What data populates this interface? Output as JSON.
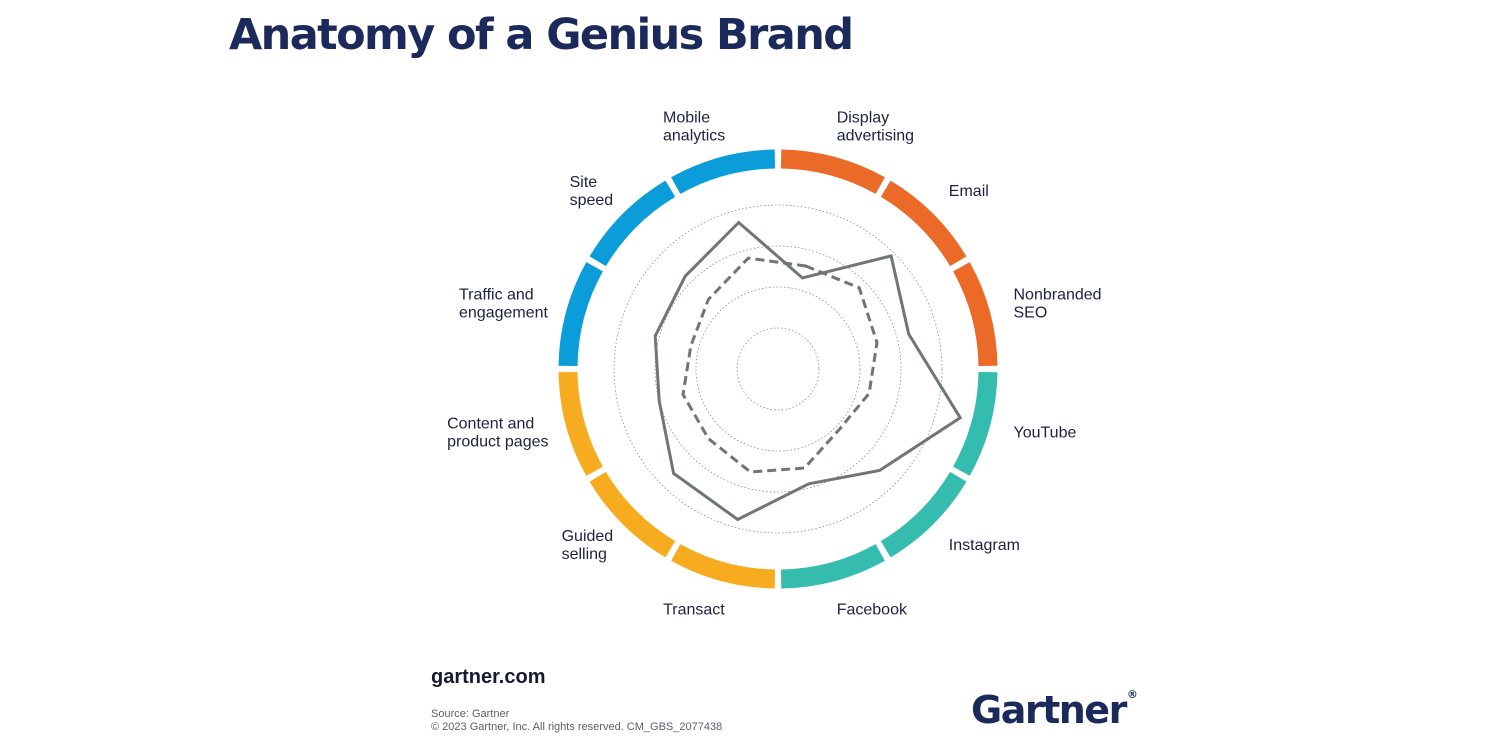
{
  "page": {
    "title": "Anatomy of a Genius Brand",
    "website": "gartner.com",
    "source_line": "Source: Gartner",
    "copyright_line": "© 2023 Gartner, Inc. All rights reserved. CM_GBS_2077438",
    "logo_text": "Gartner",
    "logo_mark": "®"
  },
  "chart_data": {
    "type": "radar",
    "categories": [
      "Display advertising",
      "Email",
      "Nonbranded SEO",
      "YouTube",
      "Instagram",
      "Facebook",
      "Transact",
      "Guided selling",
      "Content and product pages",
      "Traffic and engagement",
      "Site speed",
      "Mobile analytics"
    ],
    "label_lines": [
      [
        "Display",
        "advertising"
      ],
      [
        "Email"
      ],
      [
        "Nonbranded",
        "SEO"
      ],
      [
        "YouTube"
      ],
      [
        "Instagram"
      ],
      [
        "Facebook"
      ],
      [
        "Transact"
      ],
      [
        "Guided",
        "selling"
      ],
      [
        "Content and",
        "product pages"
      ],
      [
        "Traffic and",
        "engagement"
      ],
      [
        "Site",
        "speed"
      ],
      [
        "Mobile",
        "analytics"
      ]
    ],
    "ring_levels": [
      1,
      2,
      3,
      4
    ],
    "rlim": [
      0,
      4
    ],
    "segment_groups": [
      {
        "categories": [
          "Display advertising",
          "Email",
          "Nonbranded SEO"
        ],
        "color": "#ec6a27"
      },
      {
        "categories": [
          "YouTube",
          "Instagram",
          "Facebook"
        ],
        "color": "#34bdaf"
      },
      {
        "categories": [
          "Transact",
          "Guided selling",
          "Content and product pages"
        ],
        "color": "#f7ac1f"
      },
      {
        "categories": [
          "Traffic and engagement",
          "Site speed",
          "Mobile analytics"
        ],
        "color": "#0b9dd9"
      }
    ],
    "series": [
      {
        "style": "solid",
        "color": "#6e7773",
        "values": [
          2.3,
          3.9,
          3.3,
          4.6,
          3.5,
          2.9,
          3.8,
          3.6,
          3.0,
          3.1,
          3.2,
          3.7
        ]
      },
      {
        "style": "dashed",
        "color": "#6e7773",
        "values": [
          2.6,
          2.8,
          2.5,
          2.3,
          2.1,
          2.5,
          2.6,
          2.4,
          2.4,
          2.2,
          2.4,
          2.8
        ]
      }
    ],
    "grid": true
  }
}
